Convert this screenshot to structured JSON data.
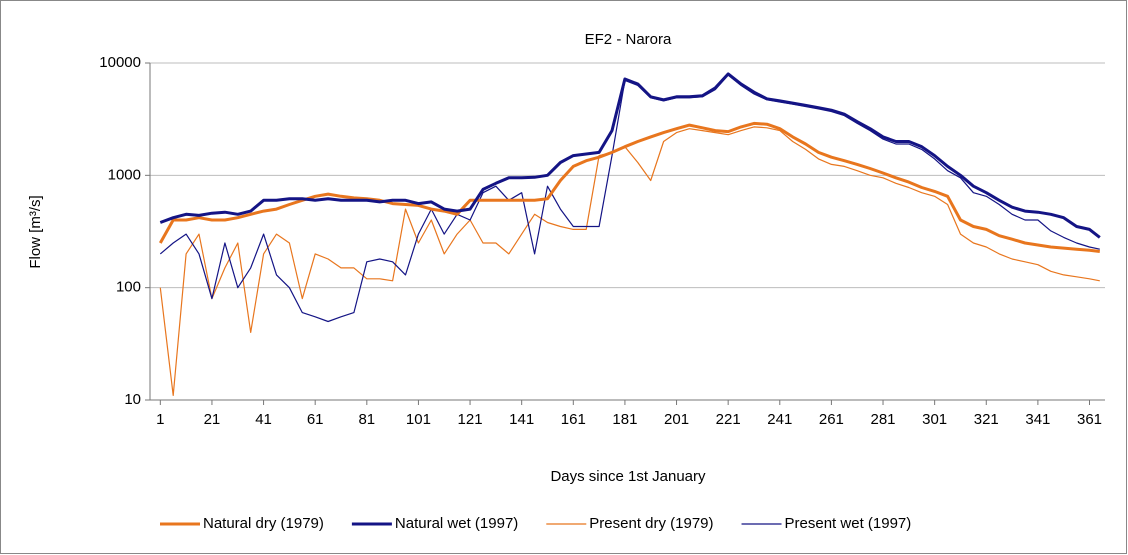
{
  "chart_data": {
    "type": "line",
    "title": "EF2 - Narora",
    "xlabel": "Days since 1st January",
    "ylabel": "Flow [m³/s]",
    "yscale": "log",
    "grid": true,
    "legend": "bottom",
    "xlim": [
      -3,
      367
    ],
    "ylim": [
      10,
      10000
    ],
    "xticks": [
      1,
      21,
      41,
      61,
      81,
      101,
      121,
      141,
      161,
      181,
      201,
      221,
      241,
      261,
      281,
      301,
      321,
      341,
      361
    ],
    "yticks": [
      10,
      100,
      1000,
      10000
    ],
    "x": [
      1,
      6,
      11,
      16,
      21,
      26,
      31,
      36,
      41,
      46,
      51,
      56,
      61,
      66,
      71,
      76,
      81,
      86,
      91,
      96,
      101,
      106,
      111,
      116,
      121,
      126,
      131,
      136,
      141,
      146,
      151,
      156,
      161,
      166,
      171,
      176,
      181,
      186,
      191,
      196,
      201,
      206,
      211,
      216,
      221,
      226,
      231,
      236,
      241,
      246,
      251,
      256,
      261,
      266,
      271,
      276,
      281,
      286,
      291,
      296,
      301,
      306,
      311,
      316,
      321,
      326,
      331,
      336,
      341,
      346,
      351,
      356,
      361,
      365
    ],
    "series": [
      {
        "name": "Natural dry (1979)",
        "color": "#e8761e",
        "linewidth": 3,
        "values": [
          250,
          400,
          400,
          420,
          400,
          400,
          420,
          450,
          480,
          500,
          550,
          600,
          650,
          680,
          650,
          630,
          620,
          600,
          560,
          550,
          540,
          500,
          480,
          450,
          600,
          600,
          600,
          600,
          600,
          600,
          620,
          900,
          1200,
          1350,
          1450,
          1600,
          1800,
          2000,
          2200,
          2400,
          2600,
          2800,
          2650,
          2500,
          2450,
          2700,
          2900,
          2850,
          2600,
          2200,
          1900,
          1600,
          1450,
          1350,
          1250,
          1150,
          1050,
          950,
          870,
          780,
          720,
          650,
          400,
          350,
          330,
          290,
          270,
          250,
          240,
          230,
          225,
          220,
          215,
          210
        ]
      },
      {
        "name": "Natural wet (1997)",
        "color": "#141485",
        "linewidth": 3,
        "values": [
          380,
          420,
          450,
          440,
          460,
          470,
          450,
          480,
          600,
          600,
          620,
          620,
          600,
          620,
          600,
          600,
          600,
          580,
          600,
          600,
          560,
          580,
          500,
          480,
          500,
          750,
          850,
          950,
          950,
          960,
          1000,
          1300,
          1500,
          1550,
          1600,
          2500,
          7200,
          6500,
          5000,
          4700,
          5000,
          5000,
          5100,
          6000,
          8000,
          6500,
          5500,
          4800,
          4600,
          4400,
          4200,
          4000,
          3800,
          3500,
          3000,
          2600,
          2200,
          2000,
          2000,
          1800,
          1500,
          1200,
          1000,
          800,
          700,
          600,
          520,
          480,
          470,
          450,
          420,
          350,
          330,
          280
        ]
      },
      {
        "name": "Present dry (1979)",
        "color": "#e8761e",
        "linewidth": 1.2,
        "values": [
          100,
          11,
          200,
          300,
          80,
          150,
          250,
          40,
          200,
          300,
          250,
          80,
          200,
          180,
          150,
          150,
          120,
          120,
          115,
          500,
          250,
          400,
          200,
          300,
          400,
          250,
          250,
          200,
          300,
          450,
          380,
          350,
          330,
          330,
          1500,
          1600,
          1800,
          1300,
          900,
          2000,
          2400,
          2600,
          2500,
          2400,
          2300,
          2500,
          2700,
          2650,
          2500,
          2000,
          1700,
          1400,
          1250,
          1200,
          1100,
          1000,
          950,
          850,
          780,
          700,
          650,
          550,
          300,
          250,
          230,
          200,
          180,
          170,
          160,
          140,
          130,
          125,
          120,
          115
        ]
      },
      {
        "name": "Present wet (1997)",
        "color": "#141485",
        "linewidth": 1.2,
        "values": [
          200,
          250,
          300,
          200,
          80,
          250,
          100,
          150,
          300,
          130,
          100,
          60,
          55,
          50,
          55,
          60,
          170,
          180,
          170,
          130,
          300,
          500,
          300,
          450,
          400,
          700,
          800,
          600,
          700,
          200,
          800,
          500,
          350,
          350,
          350,
          1500,
          7000,
          6300,
          4900,
          4600,
          4900,
          4900,
          5000,
          5800,
          7800,
          6300,
          5300,
          4700,
          4500,
          4300,
          4100,
          3900,
          3700,
          3400,
          2900,
          2500,
          2100,
          1900,
          1900,
          1700,
          1400,
          1100,
          950,
          700,
          650,
          550,
          450,
          400,
          400,
          320,
          280,
          250,
          230,
          220
        ]
      }
    ]
  }
}
